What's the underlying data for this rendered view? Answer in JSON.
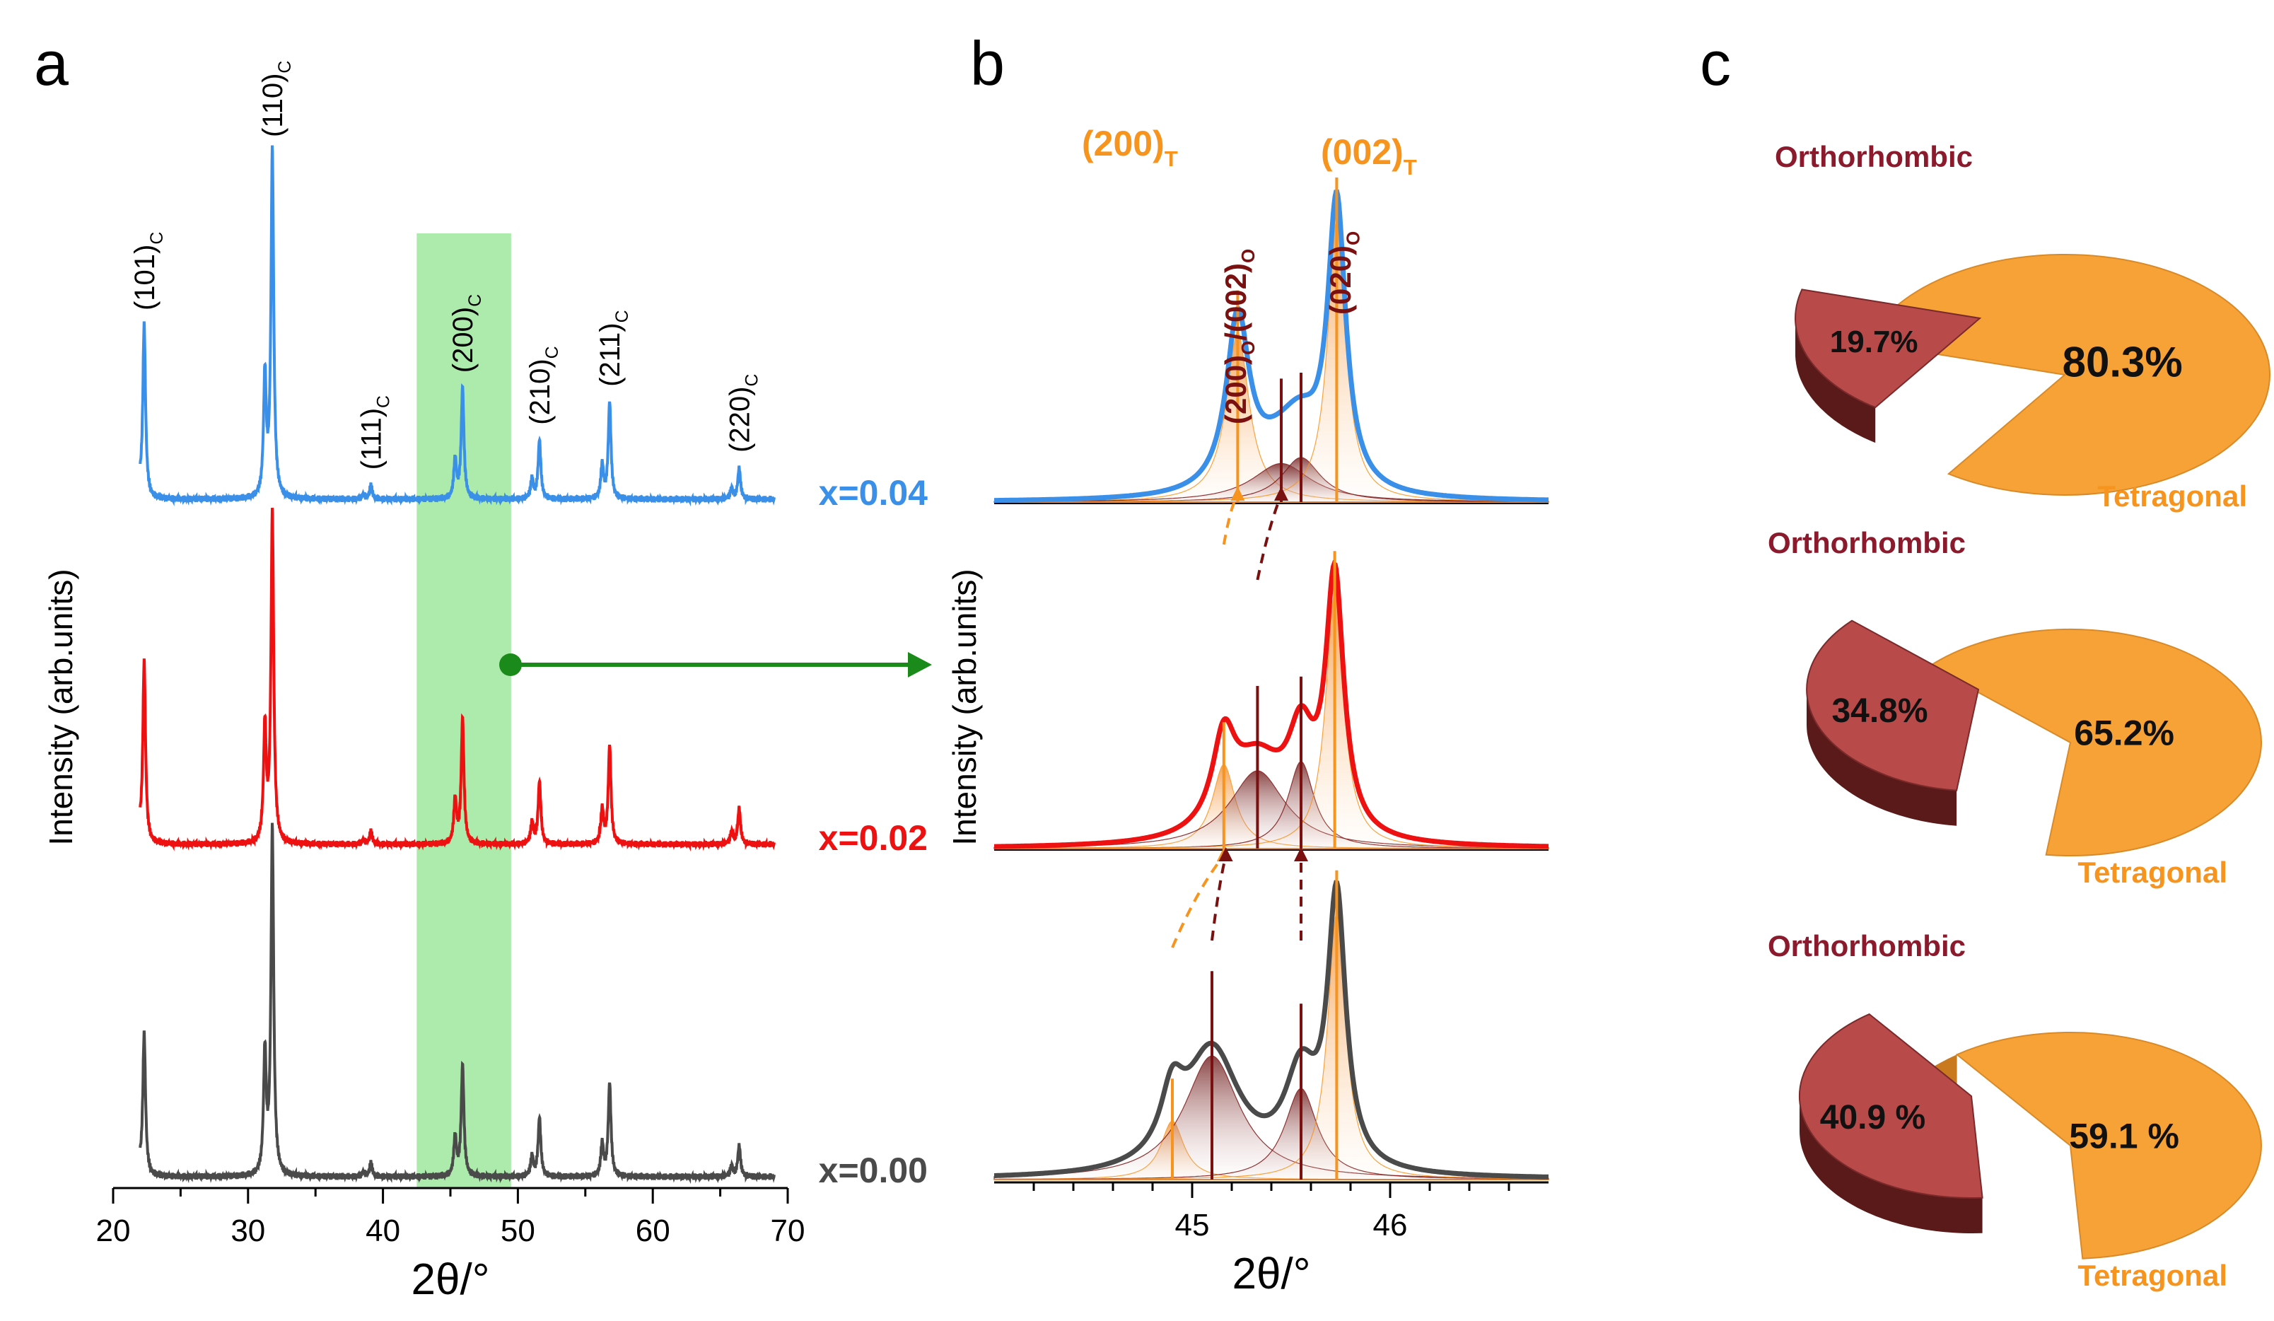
{
  "chart_data": [
    {
      "type": "line",
      "panel_label": "a",
      "title": "",
      "xlabel": "2θ/°",
      "ylabel": "Intensity (arb.units)",
      "xlim": [
        20,
        70
      ],
      "x_ticks": [
        20,
        30,
        40,
        50,
        60,
        70
      ],
      "x_tick_labels": [
        "20",
        "30",
        "40",
        "50",
        "60",
        "70"
      ],
      "highlight_range": [
        42.5,
        49.5
      ],
      "peaks": [
        {
          "pos": 22.3,
          "text": "(101)",
          "sub": "C",
          "rel": [
            0.5,
            0.55,
            0.41
          ]
        },
        {
          "pos": 31.8,
          "text": "(110)",
          "sub": "C",
          "rel": [
            1.0,
            1.0,
            1.0
          ]
        },
        {
          "pos": 39.1,
          "text": "(111)",
          "sub": "C",
          "rel": [
            0.04,
            0.04,
            0.04
          ]
        },
        {
          "pos": 45.9,
          "text": "(200)",
          "sub": "C",
          "rel": [
            0.32,
            0.38,
            0.32
          ]
        },
        {
          "pos": 51.6,
          "text": "(210)",
          "sub": "C",
          "rel": [
            0.17,
            0.19,
            0.17
          ]
        },
        {
          "pos": 56.8,
          "text": "(211)",
          "sub": "C",
          "rel": [
            0.28,
            0.3,
            0.27
          ]
        },
        {
          "pos": 66.4,
          "text": "(220)",
          "sub": "C",
          "rel": [
            0.09,
            0.11,
            0.09
          ]
        }
      ],
      "series": [
        {
          "name": "x=0.04",
          "color": "#3a8fe8"
        },
        {
          "name": "x=0.02",
          "color": "#ee1111"
        },
        {
          "name": "x=0.00",
          "color": "#4a4a4a"
        }
      ]
    },
    {
      "type": "line",
      "panel_label": "b",
      "title": "",
      "xlabel": "2θ/°",
      "ylabel": "Intensity (arb.units)",
      "xlim": [
        44.0,
        46.8
      ],
      "x_ticks": [
        45,
        46
      ],
      "x_tick_labels": [
        "45",
        "46"
      ],
      "x_minor_step": 0.2,
      "annotations": [
        {
          "text": "(200)",
          "sub": "T",
          "color": "#f7941d",
          "pos": 45.23
        },
        {
          "text": "(002)",
          "sub": "T",
          "color": "#f7941d",
          "pos": 45.78
        },
        {
          "text": "(200)",
          "sub": "O",
          "text2": "/(002)",
          "sub2": "O",
          "color": "#7a1010",
          "pos": 45.45
        },
        {
          "text": "(020)",
          "sub": "O",
          "color": "#7a1010",
          "pos": 45.55
        }
      ],
      "series": [
        {
          "name": "x=0.04",
          "color": "#3a8fe8",
          "peaks": [
            {
              "role": "T",
              "center": 45.23,
              "height": 0.57,
              "width": 0.07
            },
            {
              "role": "O",
              "center": 45.45,
              "height": 0.13,
              "width": 0.18
            },
            {
              "role": "O",
              "center": 45.55,
              "height": 0.15,
              "width": 0.12
            },
            {
              "role": "T",
              "center": 45.73,
              "height": 0.95,
              "width": 0.055
            }
          ]
        },
        {
          "name": "x=0.02",
          "color": "#ee1111",
          "peaks": [
            {
              "role": "T",
              "center": 45.16,
              "height": 0.27,
              "width": 0.07
            },
            {
              "role": "O",
              "center": 45.33,
              "height": 0.25,
              "width": 0.17
            },
            {
              "role": "O",
              "center": 45.55,
              "height": 0.28,
              "width": 0.08
            },
            {
              "role": "T",
              "center": 45.72,
              "height": 0.82,
              "width": 0.055
            }
          ]
        },
        {
          "name": "x=0.00",
          "color": "#4a4a4a",
          "peaks": [
            {
              "role": "T",
              "center": 44.9,
              "height": 0.18,
              "width": 0.07
            },
            {
              "role": "O",
              "center": 45.1,
              "height": 0.38,
              "width": 0.17
            },
            {
              "role": "O",
              "center": 45.55,
              "height": 0.28,
              "width": 0.1
            },
            {
              "role": "T",
              "center": 45.73,
              "height": 0.82,
              "width": 0.055
            }
          ]
        }
      ]
    },
    {
      "type": "pie",
      "panel_label": "c",
      "charts": [
        {
          "series": "x=0.04",
          "slices": [
            {
              "label": "Orthorhombic",
              "value": 19.7,
              "text": "19.7%"
            },
            {
              "label": "Tetragonal",
              "value": 80.3,
              "text": "80.3%"
            }
          ]
        },
        {
          "series": "x=0.02",
          "slices": [
            {
              "label": "Orthorhombic",
              "value": 34.8,
              "text": "34.8%"
            },
            {
              "label": "Tetragonal",
              "value": 65.2,
              "text": "65.2%"
            }
          ]
        },
        {
          "series": "x=0.00",
          "slices": [
            {
              "label": "Orthorhombic",
              "value": 40.9,
              "text": "40.9 %"
            },
            {
              "label": "Tetragonal",
              "value": 59.1,
              "text": "59.1 %"
            }
          ]
        }
      ],
      "colors": {
        "Orthorhombic": "#b84a4a",
        "Tetragonal": "#f7a237",
        "orthorhombic_label": "#8b1a2c",
        "tetragonal_label": "#f7941d"
      }
    }
  ],
  "arrow_color": "#1a8a1a",
  "highlight_color": "#9fe89f"
}
